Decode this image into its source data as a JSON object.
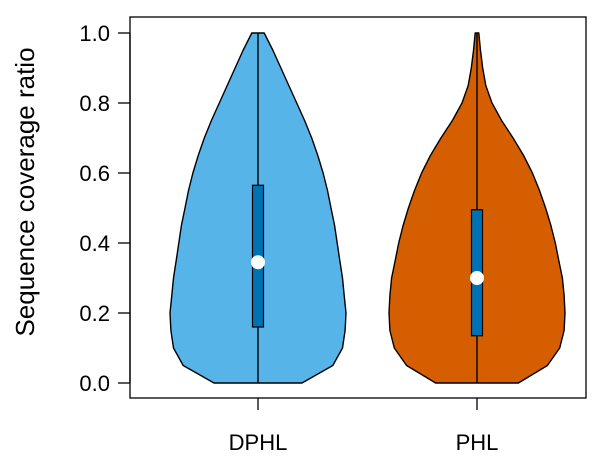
{
  "chart_data": {
    "type": "violin",
    "title": "",
    "xlabel": "",
    "ylabel": "Sequence coverage ratio",
    "ylim": [
      0,
      1
    ],
    "yticks": [
      "0.0",
      "0.2",
      "0.4",
      "0.6",
      "0.8",
      "1.0"
    ],
    "grid": false,
    "legend": "none",
    "categories": [
      "DPHL",
      "PHL"
    ],
    "series": [
      {
        "name": "DPHL",
        "color": "#56B4E9",
        "box_color": "#0072B2",
        "median": 0.345,
        "q1": 0.16,
        "q3": 0.565,
        "min": 0.0,
        "max": 1.0,
        "density": [
          [
            0.0,
            0.5
          ],
          [
            0.05,
            0.85
          ],
          [
            0.1,
            0.96
          ],
          [
            0.15,
            0.99
          ],
          [
            0.2,
            1.0
          ],
          [
            0.25,
            0.98
          ],
          [
            0.3,
            0.96
          ],
          [
            0.35,
            0.93
          ],
          [
            0.4,
            0.9
          ],
          [
            0.45,
            0.87
          ],
          [
            0.5,
            0.83
          ],
          [
            0.55,
            0.79
          ],
          [
            0.6,
            0.74
          ],
          [
            0.65,
            0.68
          ],
          [
            0.7,
            0.61
          ],
          [
            0.75,
            0.53
          ],
          [
            0.8,
            0.44
          ],
          [
            0.85,
            0.35
          ],
          [
            0.9,
            0.26
          ],
          [
            0.95,
            0.17
          ],
          [
            1.0,
            0.07
          ]
        ]
      },
      {
        "name": "PHL",
        "color": "#D55E00",
        "box_color": "#0072B2",
        "median": 0.3,
        "q1": 0.135,
        "q3": 0.495,
        "min": 0.0,
        "max": 1.0,
        "density": [
          [
            0.0,
            0.47
          ],
          [
            0.05,
            0.8
          ],
          [
            0.1,
            0.94
          ],
          [
            0.15,
            0.99
          ],
          [
            0.2,
            1.0
          ],
          [
            0.25,
            0.99
          ],
          [
            0.3,
            0.97
          ],
          [
            0.35,
            0.93
          ],
          [
            0.4,
            0.89
          ],
          [
            0.45,
            0.84
          ],
          [
            0.5,
            0.78
          ],
          [
            0.55,
            0.71
          ],
          [
            0.6,
            0.63
          ],
          [
            0.65,
            0.53
          ],
          [
            0.7,
            0.41
          ],
          [
            0.75,
            0.28
          ],
          [
            0.8,
            0.17
          ],
          [
            0.85,
            0.1
          ],
          [
            0.9,
            0.065
          ],
          [
            0.95,
            0.04
          ],
          [
            1.0,
            0.02
          ]
        ]
      }
    ]
  }
}
